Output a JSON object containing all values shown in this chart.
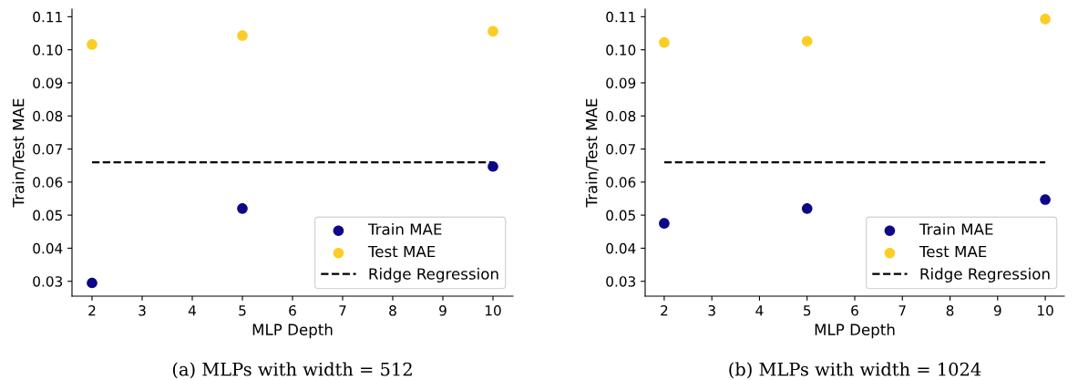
{
  "chart_data": [
    {
      "type": "scatter",
      "xlabel": "MLP Depth",
      "ylabel": "Train/Test MAE",
      "xlim": [
        1.6,
        10.4
      ],
      "ylim": [
        0.0255,
        0.1123
      ],
      "xticks": [
        2,
        3,
        4,
        5,
        6,
        7,
        8,
        9,
        10
      ],
      "yticks": [
        {
          "value": 0.03,
          "label": "0.03"
        },
        {
          "value": 0.04,
          "label": "0.04"
        },
        {
          "value": 0.05,
          "label": "0.05"
        },
        {
          "value": 0.06,
          "label": "0.06"
        },
        {
          "value": 0.07,
          "label": "0.07"
        },
        {
          "value": 0.08,
          "label": "0.08"
        },
        {
          "value": 0.09,
          "label": "0.09"
        },
        {
          "value": 0.1,
          "label": "0.10"
        },
        {
          "value": 0.11,
          "label": "0.11"
        }
      ],
      "x": [
        2,
        5,
        10
      ],
      "legend": "bottom right",
      "grid": false,
      "annotations": [
        "(a) MLPs with width = 512"
      ],
      "series": [
        {
          "name": "Train MAE",
          "color": "#0d0887",
          "marker": "circle",
          "values": [
            0.0295,
            0.052,
            0.0647
          ]
        },
        {
          "name": "Test MAE",
          "color": "#fccd25",
          "marker": "circle",
          "values": [
            0.1016,
            0.1043,
            0.1056
          ]
        },
        {
          "name": "Ridge Regression",
          "type": "line",
          "line_style": "dashed",
          "marker": "none",
          "color": "#000000",
          "values": [
            0.066,
            0.066,
            0.066
          ]
        }
      ]
    },
    {
      "type": "scatter",
      "xlabel": "MLP Depth",
      "ylabel": "Train/Test MAE",
      "xlim": [
        1.6,
        10.4
      ],
      "ylim": [
        0.0255,
        0.1123
      ],
      "xticks": [
        2,
        3,
        4,
        5,
        6,
        7,
        8,
        9,
        10
      ],
      "yticks": [
        {
          "value": 0.03,
          "label": "0.03"
        },
        {
          "value": 0.04,
          "label": "0.04"
        },
        {
          "value": 0.05,
          "label": "0.05"
        },
        {
          "value": 0.06,
          "label": "0.06"
        },
        {
          "value": 0.07,
          "label": "0.07"
        },
        {
          "value": 0.08,
          "label": "0.08"
        },
        {
          "value": 0.09,
          "label": "0.09"
        },
        {
          "value": 0.1,
          "label": "0.10"
        },
        {
          "value": 0.11,
          "label": "0.11"
        }
      ],
      "x": [
        2,
        5,
        10
      ],
      "legend": "bottom right",
      "grid": false,
      "annotations": [
        "(b) MLPs with width = 1024"
      ],
      "series": [
        {
          "name": "Train MAE",
          "color": "#0d0887",
          "marker": "circle",
          "values": [
            0.0475,
            0.052,
            0.0547
          ]
        },
        {
          "name": "Test MAE",
          "color": "#fccd25",
          "marker": "circle",
          "values": [
            0.1022,
            0.1026,
            0.1093
          ]
        },
        {
          "name": "Ridge Regression",
          "type": "line",
          "line_style": "dashed",
          "marker": "none",
          "color": "#000000",
          "values": [
            0.066,
            0.066,
            0.066
          ]
        }
      ]
    }
  ]
}
